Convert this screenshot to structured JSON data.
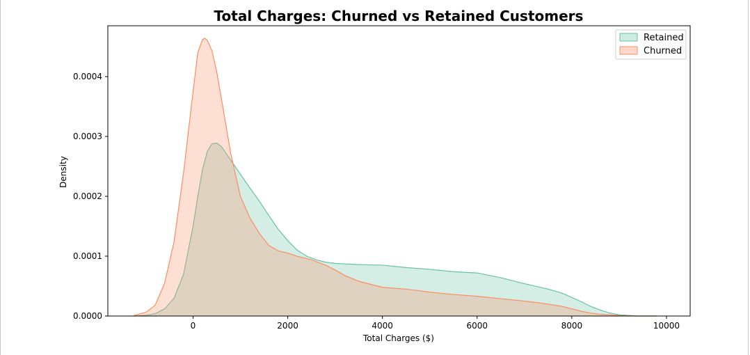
{
  "chart_data": {
    "type": "area",
    "title": "Total Charges: Churned vs Retained Customers",
    "xlabel": "Total Charges ($)",
    "ylabel": "Density",
    "xlim": [
      -1800,
      10500
    ],
    "ylim": [
      0,
      0.000485
    ],
    "xticks": [
      0,
      2000,
      4000,
      6000,
      8000,
      10000
    ],
    "yticks": [
      0,
      0.0001,
      0.0002,
      0.0003,
      0.0004
    ],
    "yticklabels": [
      "0.0000",
      "0.0001",
      "0.0002",
      "0.0003",
      "0.0004"
    ],
    "grid": false,
    "legend_position": "top-right",
    "series": [
      {
        "name": "Retained",
        "line_color": "#66c2a5",
        "fill_color": "#66c2a5",
        "fill_opacity": 0.28,
        "x": [
          -1250,
          -1000,
          -800,
          -600,
          -400,
          -200,
          0,
          100,
          200,
          300,
          400,
          500,
          600,
          800,
          1000,
          1200,
          1400,
          1600,
          1800,
          2000,
          2200,
          2400,
          2600,
          2800,
          3000,
          3200,
          3500,
          4000,
          4500,
          5000,
          5500,
          6000,
          6500,
          7000,
          7500,
          7800,
          8000,
          8200,
          8400,
          8600,
          8800,
          9000,
          9200,
          9400,
          9600,
          9800
        ],
        "y": [
          0,
          1e-06,
          4e-06,
          1.2e-05,
          3e-05,
          7e-05,
          0.00015,
          0.0002,
          0.000245,
          0.000275,
          0.000288,
          0.000289,
          0.000283,
          0.00026,
          0.000237,
          0.000214,
          0.000192,
          0.000168,
          0.000145,
          0.000126,
          0.00011,
          0.0001,
          9.4e-05,
          9e-05,
          8.8e-05,
          8.7e-05,
          8.6e-05,
          8.5e-05,
          8.1e-05,
          7.8e-05,
          7.4e-05,
          7.2e-05,
          6.4e-05,
          5.4e-05,
          4.5e-05,
          3.8e-05,
          3.1e-05,
          2.4e-05,
          1.6e-05,
          1e-05,
          5e-06,
          2e-06,
          1e-06,
          0,
          0,
          0
        ]
      },
      {
        "name": "Churned",
        "line_color": "#fc8d62",
        "fill_color": "#fc8d62",
        "fill_opacity": 0.28,
        "x": [
          -1250,
          -1000,
          -800,
          -600,
          -400,
          -200,
          0,
          100,
          200,
          250,
          300,
          400,
          500,
          600,
          800,
          1000,
          1200,
          1400,
          1600,
          1800,
          2000,
          2200,
          2500,
          2800,
          3000,
          3200,
          3500,
          4000,
          4500,
          5000,
          5500,
          6000,
          6500,
          7000,
          7500,
          7800,
          8000,
          8200,
          8400,
          8600,
          8800,
          9000,
          9400,
          9800
        ],
        "y": [
          1e-06,
          6e-06,
          1.8e-05,
          5.5e-05,
          0.000125,
          0.00024,
          0.000375,
          0.00044,
          0.000462,
          0.000464,
          0.000461,
          0.000443,
          0.000408,
          0.000363,
          0.00027,
          0.0002,
          0.000164,
          0.000138,
          0.000118,
          0.000109,
          0.000105,
          0.0001,
          9.4e-05,
          8.5e-05,
          7.7e-05,
          6.8e-05,
          5.8e-05,
          4.8e-05,
          4.5e-05,
          4e-05,
          3.6e-05,
          3.3e-05,
          2.9e-05,
          2.5e-05,
          2e-05,
          1.6e-05,
          1.2e-05,
          8e-06,
          5e-06,
          3e-06,
          2e-06,
          1e-06,
          0,
          0
        ]
      }
    ]
  }
}
